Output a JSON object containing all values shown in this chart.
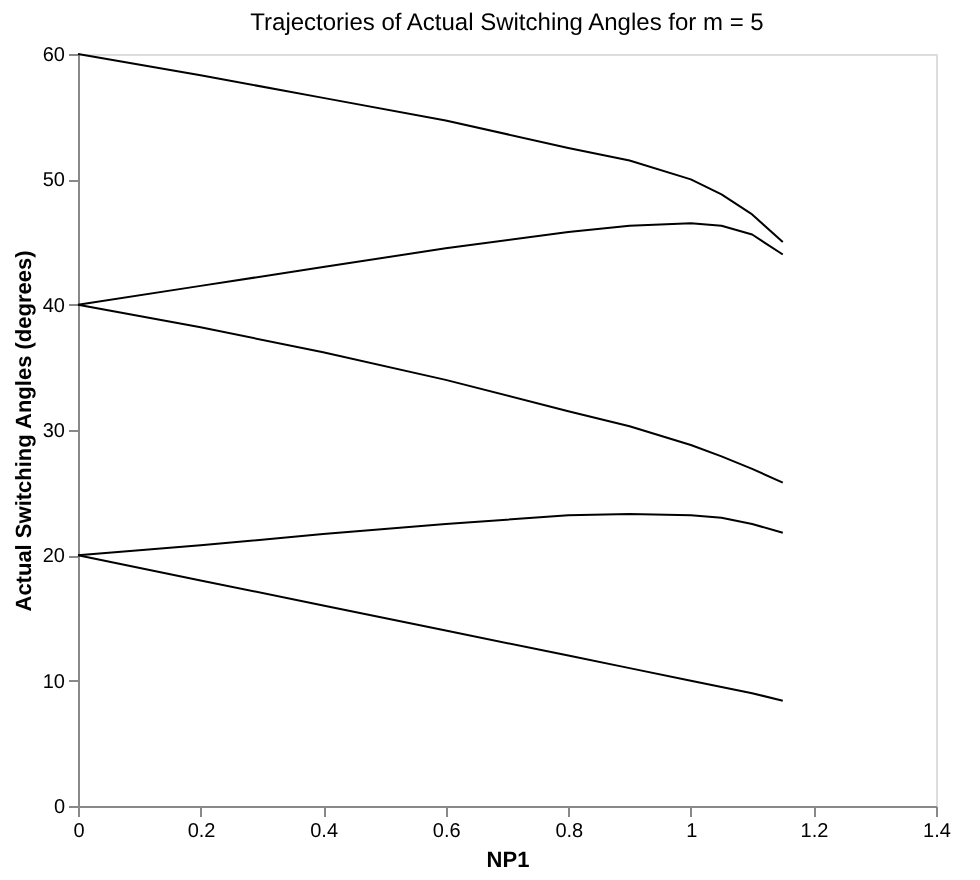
{
  "chart_data": {
    "type": "line",
    "title": "Trajectories of Actual Switching Angles for m = 5",
    "xlabel": "NP1",
    "ylabel": "Actual Switching Angles (degrees)",
    "x": [
      0,
      0.2,
      0.4,
      0.6,
      0.8,
      0.9,
      1.0,
      1.05,
      1.1,
      1.15
    ],
    "series": [
      {
        "color": "#000000",
        "values": [
          60,
          58.3,
          56.5,
          54.7,
          52.5,
          51.5,
          50.0,
          48.8,
          47.2,
          45.0
        ]
      },
      {
        "color": "#000000",
        "values": [
          40,
          41.5,
          43,
          44.5,
          45.8,
          46.3,
          46.5,
          46.3,
          45.6,
          44.0
        ]
      },
      {
        "color": "#000000",
        "values": [
          40,
          38.2,
          36.2,
          34.0,
          31.5,
          30.3,
          28.8,
          27.9,
          26.9,
          25.8
        ]
      },
      {
        "color": "#000000",
        "values": [
          20,
          20.8,
          21.7,
          22.5,
          23.2,
          23.3,
          23.2,
          23.0,
          22.5,
          21.8
        ]
      },
      {
        "color": "#000000",
        "values": [
          20,
          18.0,
          16.0,
          14.0,
          12.0,
          11.0,
          10.0,
          9.5,
          9.0,
          8.4
        ]
      }
    ],
    "xlim": [
      0,
      1.4
    ],
    "xticks": [
      0,
      0.2,
      0.4,
      0.6,
      0.8,
      1,
      1.2,
      1.4
    ],
    "ylim": [
      0,
      60
    ],
    "yticks": [
      0,
      10,
      20,
      30,
      40,
      50,
      60
    ],
    "grid": false,
    "legend": false,
    "marker": "none",
    "line_style": "solid"
  }
}
